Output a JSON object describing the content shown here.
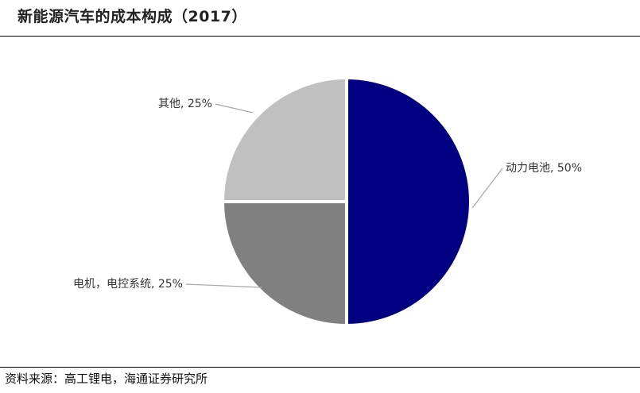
{
  "title": "新能源汽车的成本构成（2017）",
  "source": "资料来源：高工锂电，海通证券研究所",
  "chart_data": {
    "type": "pie",
    "title": "新能源汽车的成本构成（2017）",
    "slices": [
      {
        "label": "动力电池, 50%",
        "name": "动力电池",
        "value": 50,
        "color": "#000080"
      },
      {
        "label": "电机，电控系统, 25%",
        "name": "电机，电控系统",
        "value": 25,
        "color": "#808080"
      },
      {
        "label": "其他, 25%",
        "name": "其他",
        "value": 25,
        "color": "#c0c0c0"
      }
    ],
    "legend": "none"
  }
}
